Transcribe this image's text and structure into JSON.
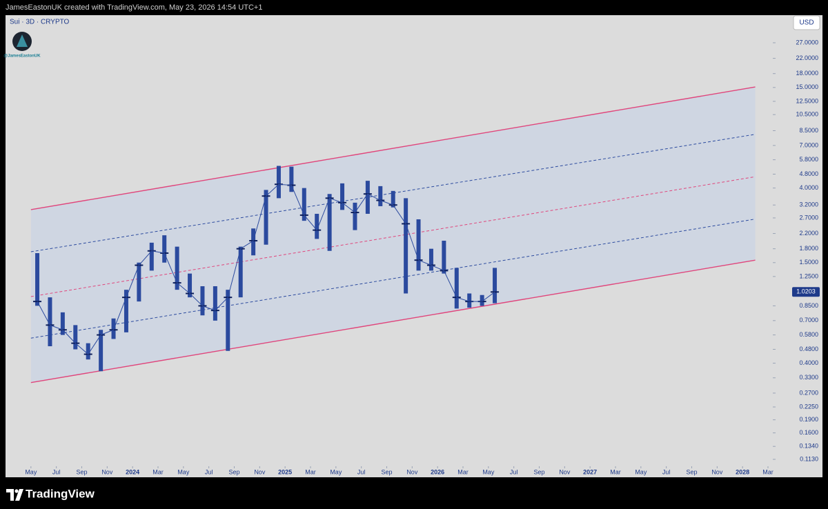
{
  "header": "JamesEastonUK created with TradingView.com, May 23, 2026 14:54 UTC+1",
  "footer": "TradingView",
  "chart_data": {
    "type": "ohlc",
    "title": "Sui · 3D · CRYPTO",
    "watermark": "@JamesEastonUK",
    "currency": "USD",
    "log_scale": true,
    "color": "#2b4a9e",
    "last_price": 1.0203,
    "x": [
      "2023-05",
      "2023-06",
      "2023-07",
      "2023-08",
      "2023-09",
      "2023-10",
      "2023-11",
      "2023-12",
      "2024-01",
      "2024-02",
      "2024-03",
      "2024-04",
      "2024-05",
      "2024-06",
      "2024-07",
      "2024-08",
      "2024-09",
      "2024-10",
      "2024-11",
      "2024-12",
      "2025-01",
      "2025-02",
      "2025-03",
      "2025-04",
      "2025-05",
      "2025-06",
      "2025-07",
      "2025-08",
      "2025-09",
      "2025-10",
      "2025-11",
      "2025-12",
      "2026-01",
      "2026-02",
      "2026-03",
      "2026-04",
      "2026-05"
    ],
    "high": [
      1.7,
      0.95,
      0.78,
      0.66,
      0.52,
      0.62,
      0.72,
      1.05,
      1.5,
      1.95,
      2.15,
      1.85,
      1.3,
      1.1,
      1.1,
      1.05,
      1.85,
      2.35,
      3.9,
      5.35,
      5.3,
      4.0,
      2.85,
      3.7,
      4.25,
      3.3,
      4.4,
      4.1,
      3.85,
      3.5,
      2.65,
      1.8,
      2.0,
      1.4,
      1.0,
      0.98,
      1.4
    ],
    "low": [
      0.85,
      0.5,
      0.58,
      0.48,
      0.42,
      0.36,
      0.55,
      0.6,
      0.9,
      1.35,
      1.5,
      1.05,
      0.95,
      0.75,
      0.7,
      0.47,
      0.95,
      1.65,
      1.9,
      3.5,
      3.8,
      2.6,
      2.05,
      1.75,
      3.0,
      2.3,
      2.85,
      3.15,
      3.1,
      1.0,
      1.35,
      1.35,
      1.3,
      0.82,
      0.83,
      0.85,
      0.88
    ],
    "close": [
      0.9,
      0.66,
      0.62,
      0.52,
      0.45,
      0.58,
      0.62,
      0.95,
      1.45,
      1.75,
      1.7,
      1.15,
      1.0,
      0.85,
      0.8,
      0.95,
      1.8,
      2.0,
      3.6,
      4.2,
      4.15,
      2.8,
      2.3,
      3.5,
      3.3,
      2.9,
      3.7,
      3.4,
      3.2,
      2.5,
      1.55,
      1.45,
      1.35,
      0.95,
      0.9,
      0.9,
      1.02
    ],
    "xlim": [
      "2023-03",
      "2028-03"
    ],
    "xticks": [
      {
        "value": "2023-05",
        "label": "May"
      },
      {
        "value": "2023-07",
        "label": "Jul"
      },
      {
        "value": "2023-09",
        "label": "Sep"
      },
      {
        "value": "2023-11",
        "label": "Nov"
      },
      {
        "value": "2024-01",
        "label": "2024"
      },
      {
        "value": "2024-03",
        "label": "Mar"
      },
      {
        "value": "2024-05",
        "label": "May"
      },
      {
        "value": "2024-07",
        "label": "Jul"
      },
      {
        "value": "2024-09",
        "label": "Sep"
      },
      {
        "value": "2024-11",
        "label": "Nov"
      },
      {
        "value": "2025-01",
        "label": "2025"
      },
      {
        "value": "2025-03",
        "label": "Mar"
      },
      {
        "value": "2025-05",
        "label": "May"
      },
      {
        "value": "2025-07",
        "label": "Jul"
      },
      {
        "value": "2025-09",
        "label": "Sep"
      },
      {
        "value": "2025-11",
        "label": "Nov"
      },
      {
        "value": "2026-01",
        "label": "2026"
      },
      {
        "value": "2026-03",
        "label": "Mar"
      },
      {
        "value": "2026-05",
        "label": "May"
      },
      {
        "value": "2026-07",
        "label": "Jul"
      },
      {
        "value": "2026-09",
        "label": "Sep"
      },
      {
        "value": "2026-11",
        "label": "Nov"
      },
      {
        "value": "2027-01",
        "label": "2027"
      },
      {
        "value": "2027-03",
        "label": "Mar"
      },
      {
        "value": "2027-05",
        "label": "May"
      },
      {
        "value": "2027-07",
        "label": "Jul"
      },
      {
        "value": "2027-09",
        "label": "Sep"
      },
      {
        "value": "2027-11",
        "label": "Nov"
      },
      {
        "value": "2028-01",
        "label": "2028"
      },
      {
        "value": "2028-03",
        "label": "Mar"
      }
    ],
    "ylim": [
      0.1032,
      38.8
    ],
    "yticks": [
      {
        "value": 27,
        "label": "27.0000"
      },
      {
        "value": 22,
        "label": "22.0000"
      },
      {
        "value": 18,
        "label": "18.0000"
      },
      {
        "value": 15,
        "label": "15.0000"
      },
      {
        "value": 12.5,
        "label": "12.5000"
      },
      {
        "value": 10.5,
        "label": "10.5000"
      },
      {
        "value": 8.5,
        "label": "8.5000"
      },
      {
        "value": 7,
        "label": "7.0000"
      },
      {
        "value": 5.8,
        "label": "5.8000"
      },
      {
        "value": 4.8,
        "label": "4.8000"
      },
      {
        "value": 4,
        "label": "4.0000"
      },
      {
        "value": 3.2,
        "label": "3.2000"
      },
      {
        "value": 2.7,
        "label": "2.7000"
      },
      {
        "value": 2.2,
        "label": "2.2000"
      },
      {
        "value": 1.8,
        "label": "1.8000"
      },
      {
        "value": 1.5,
        "label": "1.5000"
      },
      {
        "value": 1.25,
        "label": "1.2500"
      },
      {
        "value": 0.85,
        "label": "0.8500"
      },
      {
        "value": 0.7,
        "label": "0.7000"
      },
      {
        "value": 0.58,
        "label": "0.5800"
      },
      {
        "value": 0.48,
        "label": "0.4800"
      },
      {
        "value": 0.4,
        "label": "0.4000"
      },
      {
        "value": 0.33,
        "label": "0.3300"
      },
      {
        "value": 0.27,
        "label": "0.2700"
      },
      {
        "value": 0.225,
        "label": "0.2250"
      },
      {
        "value": 0.19,
        "label": "0.1900"
      },
      {
        "value": 0.16,
        "label": "0.1600"
      },
      {
        "value": 0.134,
        "label": "0.1340"
      },
      {
        "value": 0.113,
        "label": "0.1130"
      }
    ],
    "channel": {
      "x": [
        "2023-05",
        "2028-02"
      ],
      "fill": "#cdd5e3",
      "lines": [
        {
          "values": [
            3.01,
            15.1
          ],
          "color": "#e0457b",
          "dashed": false
        },
        {
          "values": [
            1.73,
            8.1
          ],
          "color": "#2b4a9e",
          "dashed": true
        },
        {
          "values": [
            0.96,
            4.64
          ],
          "color": "#e0457b",
          "dashed": true
        },
        {
          "values": [
            0.556,
            2.66
          ],
          "color": "#2b4a9e",
          "dashed": true
        },
        {
          "values": [
            0.31,
            1.55
          ],
          "color": "#e0457b",
          "dashed": false
        }
      ]
    }
  }
}
